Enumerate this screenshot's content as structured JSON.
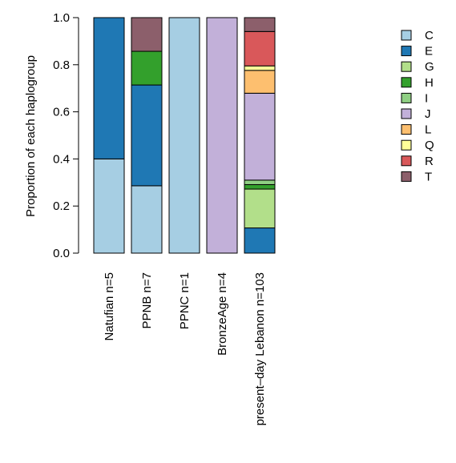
{
  "chart_data": {
    "type": "bar",
    "stacked": true,
    "title": "",
    "xlabel": "",
    "ylabel": "Proportion of each haplogroup",
    "ylim": [
      0,
      1
    ],
    "yticks": [
      "0.0",
      "0.2",
      "0.4",
      "0.6",
      "0.8",
      "1.0"
    ],
    "grid": false,
    "legend_position": "right",
    "categories": [
      "Natufian n=5",
      "PPNB n=7",
      "PPNC n=1",
      "BronzeAge n=4",
      "present–day Lebanon n=103"
    ],
    "series": [
      {
        "name": "C",
        "color": "#a6cee3",
        "values": [
          0.4,
          0.286,
          1.0,
          0.0,
          0.0
        ]
      },
      {
        "name": "E",
        "color": "#1f78b4",
        "values": [
          0.6,
          0.428,
          0.0,
          0.0,
          0.107
        ]
      },
      {
        "name": "G",
        "color": "#b2df8a",
        "values": [
          0.0,
          0.0,
          0.0,
          0.0,
          0.165
        ]
      },
      {
        "name": "H",
        "color": "#33a02c",
        "values": [
          0.0,
          0.143,
          0.0,
          0.0,
          0.019
        ]
      },
      {
        "name": "I",
        "color": "#8fcf83",
        "values": [
          0.0,
          0.0,
          0.0,
          0.0,
          0.019
        ]
      },
      {
        "name": "J",
        "color": "#c2b0d9",
        "values": [
          0.0,
          0.0,
          0.0,
          1.0,
          0.369
        ]
      },
      {
        "name": "L",
        "color": "#fdbf6f",
        "values": [
          0.0,
          0.0,
          0.0,
          0.0,
          0.097
        ]
      },
      {
        "name": "Q",
        "color": "#ffff99",
        "values": [
          0.0,
          0.0,
          0.0,
          0.0,
          0.019
        ]
      },
      {
        "name": "R",
        "color": "#d9585a",
        "values": [
          0.0,
          0.0,
          0.0,
          0.0,
          0.146
        ]
      },
      {
        "name": "T",
        "color": "#8c5f6b",
        "values": [
          0.0,
          0.143,
          0.0,
          0.0,
          0.059
        ]
      }
    ]
  }
}
